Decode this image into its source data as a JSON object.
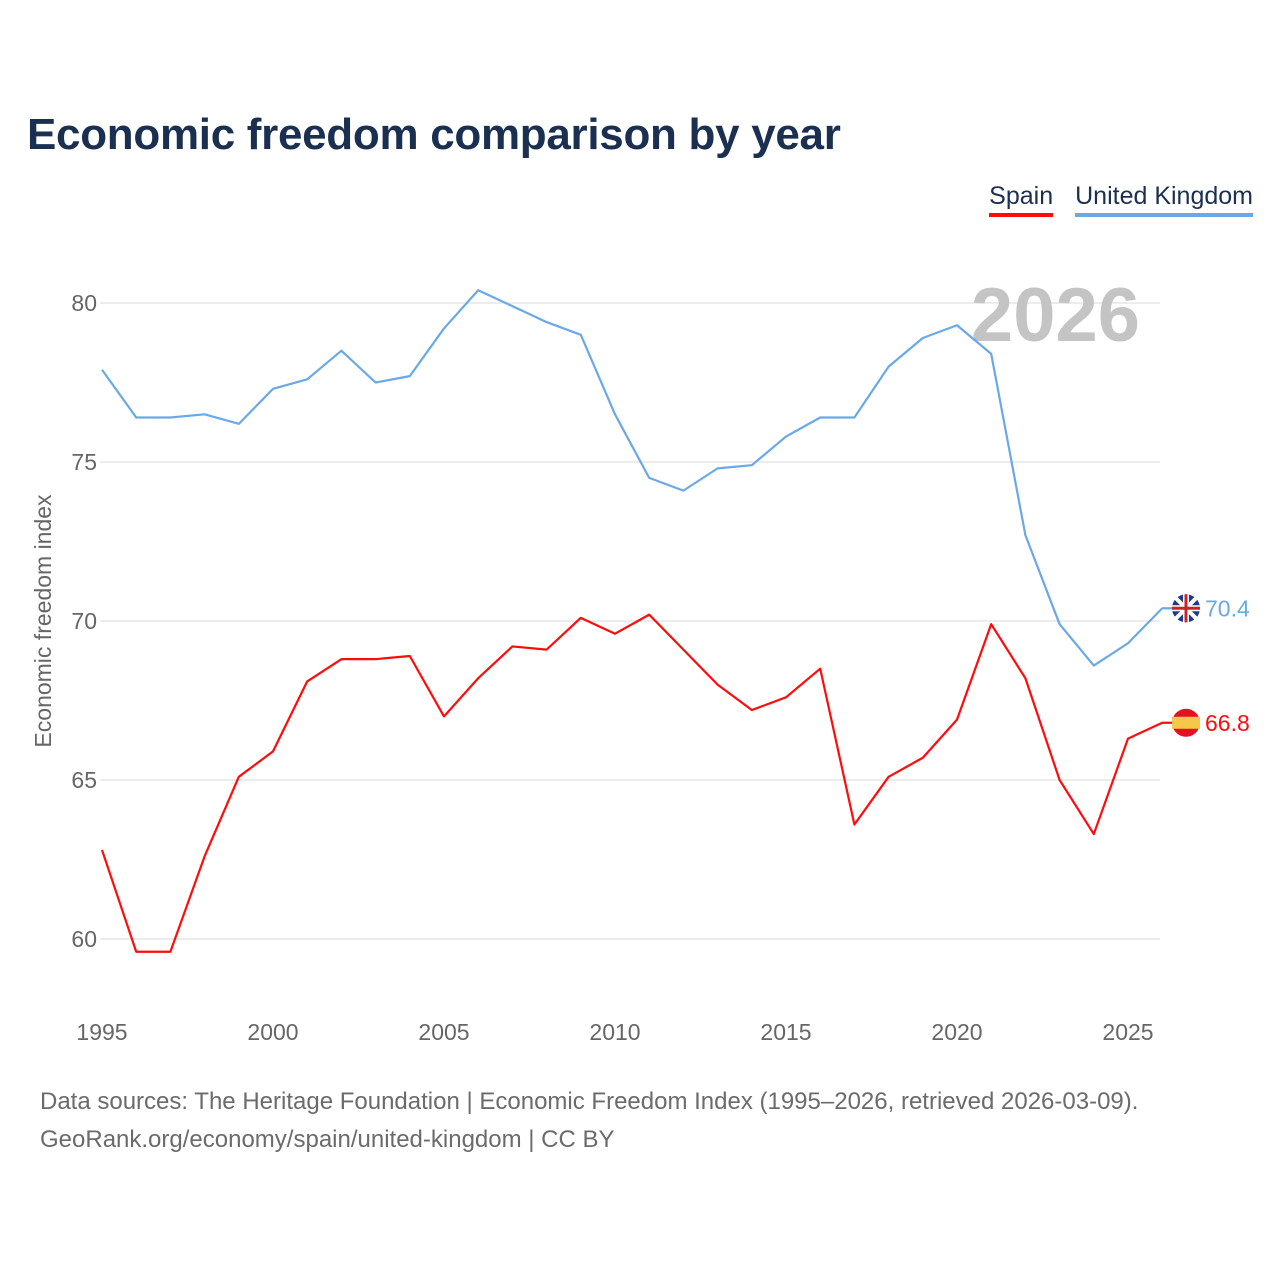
{
  "title": "Economic freedom comparison by year",
  "chart_data": {
    "type": "line",
    "title": "Economic freedom comparison by year",
    "xlabel": "",
    "ylabel": "Economic freedom index",
    "xlim": [
      1995,
      2026
    ],
    "ylim": [
      58,
      82
    ],
    "xticks": [
      1995,
      2000,
      2005,
      2010,
      2015,
      2020,
      2025
    ],
    "yticks": [
      60,
      65,
      70,
      75,
      80
    ],
    "grid": true,
    "legend_position": "top-right",
    "watermark_year": "2026",
    "x": [
      1995,
      1996,
      1997,
      1998,
      1999,
      2000,
      2001,
      2002,
      2003,
      2004,
      2005,
      2006,
      2007,
      2008,
      2009,
      2010,
      2011,
      2012,
      2013,
      2014,
      2015,
      2016,
      2017,
      2018,
      2019,
      2020,
      2021,
      2022,
      2023,
      2024,
      2025,
      2026
    ],
    "series": [
      {
        "name": "Spain",
        "color": "#ff0b0b",
        "end_label": "66.8",
        "values": [
          62.8,
          59.6,
          59.6,
          62.6,
          65.1,
          65.9,
          68.1,
          68.8,
          68.8,
          68.9,
          67.0,
          68.2,
          69.2,
          69.1,
          70.1,
          69.6,
          70.2,
          69.1,
          68.0,
          67.2,
          67.6,
          68.5,
          63.6,
          65.1,
          65.7,
          66.9,
          69.9,
          68.2,
          65.0,
          63.3,
          66.3,
          66.8
        ]
      },
      {
        "name": "United Kingdom",
        "color": "#6aa8e8",
        "end_label": "70.4",
        "values": [
          77.9,
          76.4,
          76.4,
          76.5,
          76.2,
          77.3,
          77.6,
          78.5,
          77.5,
          77.7,
          79.2,
          80.4,
          79.9,
          79.4,
          79.0,
          76.5,
          74.5,
          74.1,
          74.8,
          74.9,
          75.8,
          76.4,
          76.4,
          78.0,
          78.9,
          79.3,
          78.4,
          72.7,
          69.9,
          68.6,
          69.3,
          70.4
        ]
      }
    ]
  },
  "footer": {
    "line1": "Data sources: The Heritage Foundation | Economic Freedom Index (1995–2026, retrieved 2026-03-09).",
    "line2": "GeoRank.org/economy/spain/united-kingdom | CC BY"
  }
}
